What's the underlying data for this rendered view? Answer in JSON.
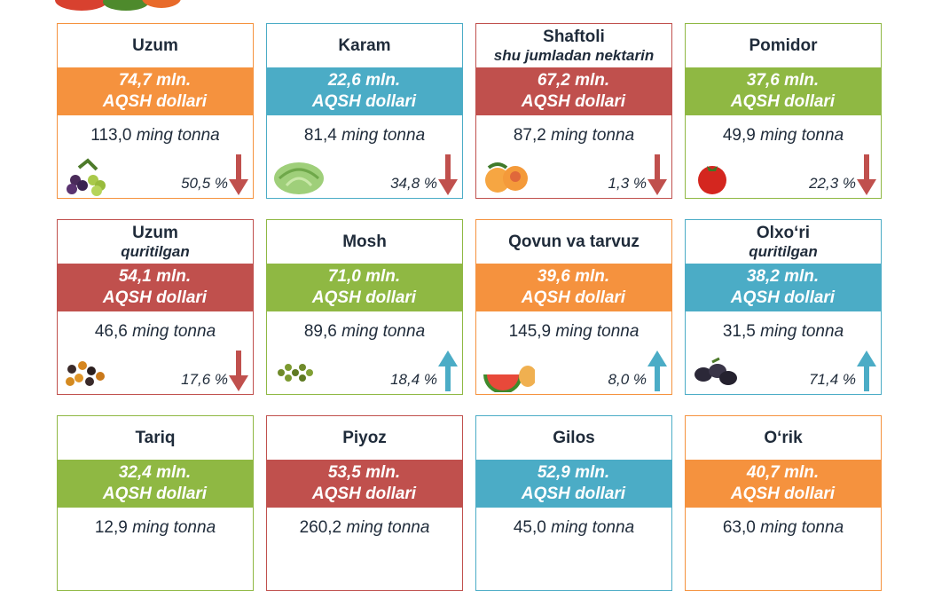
{
  "colors": {
    "orange": "#f5923e",
    "blue": "#4bacc6",
    "red": "#c0504d",
    "green": "#8fb843",
    "arrow_down": "#c0504d",
    "arrow_up": "#4bacc6"
  },
  "cards": [
    {
      "title": "Uzum",
      "subtitle": "",
      "value": "74,7 mln.",
      "currency": "AQSH dollari",
      "qty": "113,0",
      "unit": "ming tonna",
      "pct": "50,5 %",
      "trend": "down",
      "color": "orange",
      "icon": "grapes-icon"
    },
    {
      "title": "Karam",
      "subtitle": "",
      "value": "22,6 mln.",
      "currency": "AQSH dollari",
      "qty": "81,4",
      "unit": "ming tonna",
      "pct": "34,8 %",
      "trend": "down",
      "color": "blue",
      "icon": "cabbage-icon"
    },
    {
      "title": "Shaftoli",
      "subtitle": "shu jumladan nektarin",
      "value": "67,2 mln.",
      "currency": "AQSH dollari",
      "qty": "87,2",
      "unit": "ming tonna",
      "pct": "1,3 %",
      "trend": "down",
      "color": "red",
      "icon": "peach-icon"
    },
    {
      "title": "Pomidor",
      "subtitle": "",
      "value": "37,6 mln.",
      "currency": "AQSH dollari",
      "qty": "49,9",
      "unit": "ming tonna",
      "pct": "22,3 %",
      "trend": "down",
      "color": "green",
      "icon": "tomato-icon"
    },
    {
      "title": "Uzum",
      "subtitle": "quritilgan",
      "value": "54,1 mln.",
      "currency": "AQSH dollari",
      "qty": "46,6",
      "unit": "ming tonna",
      "pct": "17,6 %",
      "trend": "down",
      "color": "red",
      "icon": "raisins-icon"
    },
    {
      "title": "Mosh",
      "subtitle": "",
      "value": "71,0 mln.",
      "currency": "AQSH dollari",
      "qty": "89,6",
      "unit": "ming tonna",
      "pct": "18,4 %",
      "trend": "up",
      "color": "green",
      "icon": "mung-beans-icon"
    },
    {
      "title": "Qovun va tarvuz",
      "subtitle": "",
      "value": "39,6 mln.",
      "currency": "AQSH dollari",
      "qty": "145,9",
      "unit": "ming tonna",
      "pct": "8,0 %",
      "trend": "up",
      "color": "orange",
      "icon": "melon-icon"
    },
    {
      "title": "Olxo‘ri",
      "subtitle": "quritilgan",
      "value": "38,2 mln.",
      "currency": "AQSH dollari",
      "qty": "31,5",
      "unit": "ming tonna",
      "pct": "71,4 %",
      "trend": "up",
      "color": "blue",
      "icon": "prunes-icon"
    },
    {
      "title": "Tariq",
      "subtitle": "",
      "value": "32,4 mln.",
      "currency": "AQSH dollari",
      "qty": "12,9",
      "unit": "ming tonna",
      "pct": "",
      "trend": "",
      "color": "green",
      "icon": ""
    },
    {
      "title": "Piyoz",
      "subtitle": "",
      "value": "53,5 mln.",
      "currency": "AQSH dollari",
      "qty": "260,2",
      "unit": "ming tonna",
      "pct": "",
      "trend": "",
      "color": "red",
      "icon": ""
    },
    {
      "title": "Gilos",
      "subtitle": "",
      "value": "52,9 mln.",
      "currency": "AQSH dollari",
      "qty": "45,0",
      "unit": "ming tonna",
      "pct": "",
      "trend": "",
      "color": "blue",
      "icon": ""
    },
    {
      "title": "O‘rik",
      "subtitle": "",
      "value": "40,7 mln.",
      "currency": "AQSH dollari",
      "qty": "63,0",
      "unit": "ming tonna",
      "pct": "",
      "trend": "",
      "color": "orange",
      "icon": ""
    }
  ]
}
